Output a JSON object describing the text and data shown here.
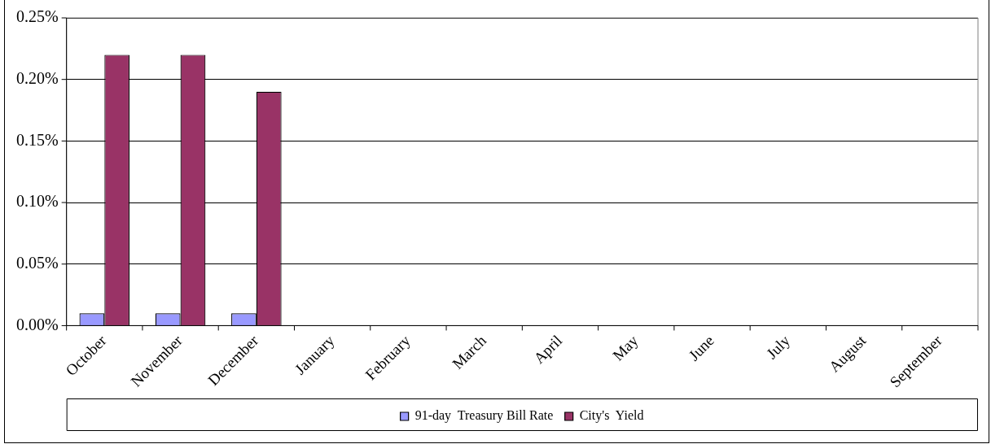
{
  "chart_data": {
    "type": "bar",
    "categories": [
      "October",
      "November",
      "December",
      "January",
      "February",
      "March",
      "April",
      "May",
      "June",
      "July",
      "August",
      "September"
    ],
    "series": [
      {
        "name": "91-day  Treasury Bill Rate",
        "color": "#9999ff",
        "values": [
          0.01,
          0.01,
          0.01,
          null,
          null,
          null,
          null,
          null,
          null,
          null,
          null,
          null
        ]
      },
      {
        "name": "City's  Yield",
        "color": "#993366",
        "values": [
          0.22,
          0.22,
          0.19,
          null,
          null,
          null,
          null,
          null,
          null,
          null,
          null,
          null
        ]
      }
    ],
    "ylim": [
      0,
      0.25
    ],
    "yticks": [
      {
        "value": 0,
        "label": "0.00%"
      },
      {
        "value": 0.05,
        "label": "0.05%"
      },
      {
        "value": 0.1,
        "label": "0.10%"
      },
      {
        "value": 0.15,
        "label": "0.15%"
      },
      {
        "value": 0.2,
        "label": "0.20%"
      },
      {
        "value": 0.25,
        "label": "0.25%"
      }
    ],
    "grid": "y",
    "legend": "bottom"
  }
}
